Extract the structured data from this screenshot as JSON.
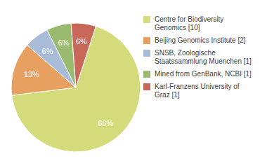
{
  "chart_data": {
    "type": "pie",
    "categories": [
      "Centre for Biodiversity\nGenomics [10]",
      "Beijing Genomics Institute [2]",
      "SNSB, Zoologische\nStaatssammlung Muenchen [1]",
      "Mined from GenBank, NCBI [1]",
      "Karl-Franzens University of\nGraz [1]"
    ],
    "values": [
      66,
      13,
      6,
      6,
      6
    ],
    "value_labels": [
      "66%",
      "13%",
      "6%",
      "6%",
      "6%"
    ],
    "data_labels": true,
    "colors": [
      "#d4db7a",
      "#e8a060",
      "#a8bcd8",
      "#9aba70",
      "#c86858"
    ],
    "legend": "right"
  }
}
